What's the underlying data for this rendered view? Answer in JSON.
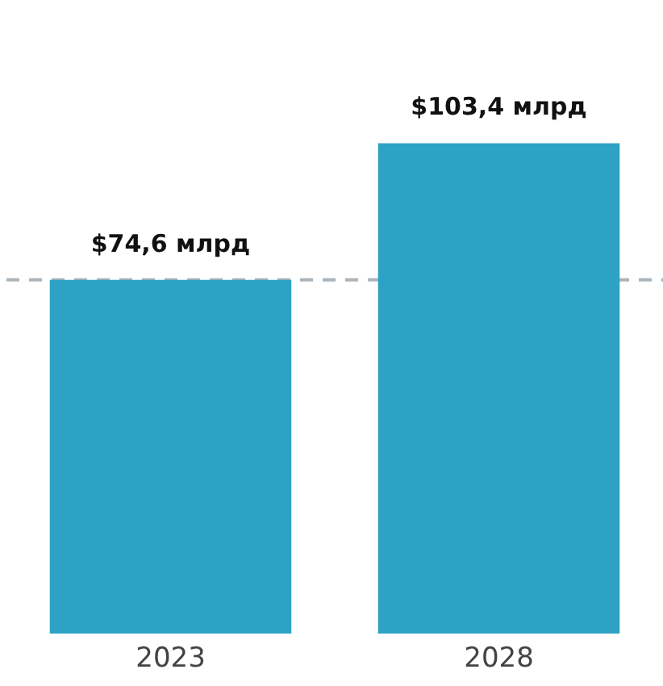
{
  "chart_data": {
    "type": "bar",
    "categories": [
      "2023",
      "2028"
    ],
    "values": [
      74.6,
      103.4
    ],
    "value_labels": [
      "$74,6 млрд",
      "$103,4 млрд"
    ],
    "color": "#2ea2c4",
    "grid": false,
    "legend": false,
    "tick_labels": "x",
    "ref_lines": [
      {
        "axis": "y",
        "value": 74.6,
        "color": "#a9b4bc",
        "line_style": "dashed"
      }
    ]
  }
}
